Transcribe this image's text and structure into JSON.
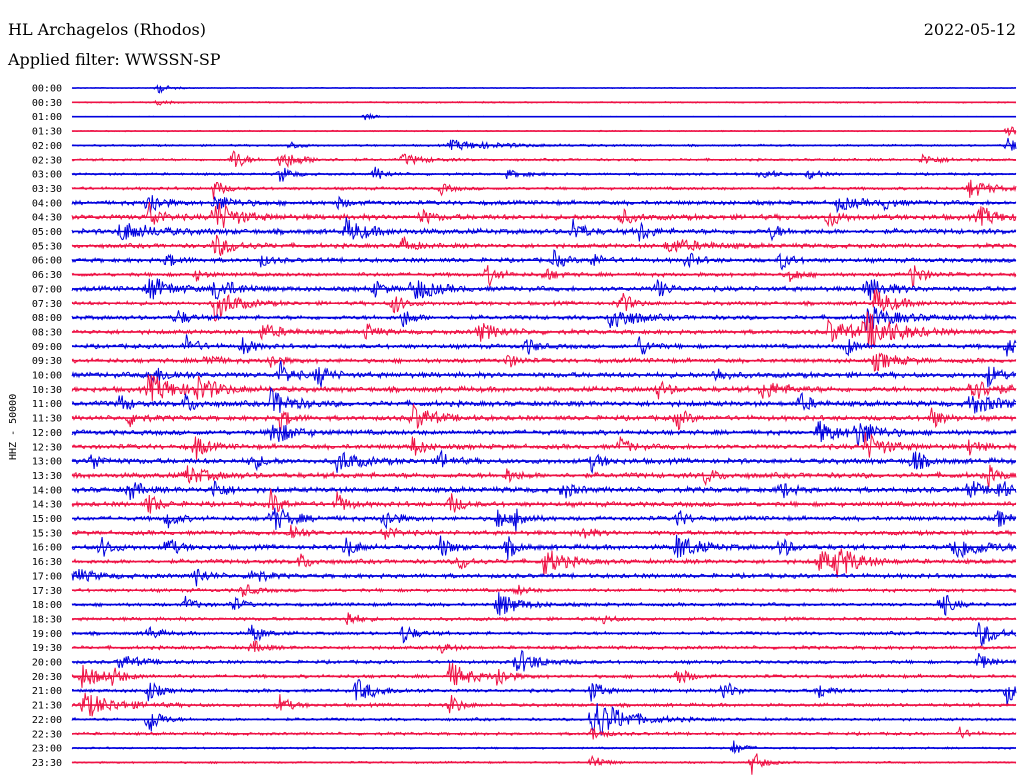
{
  "header": {
    "station": "HL Archagelos (Rhodos)",
    "filter": "Applied filter: WWSSN-SP",
    "date": "2022-05-12"
  },
  "chart_data": {
    "type": "line",
    "title": "HL Archagelos (Rhodos)",
    "subtitle": "Applied filter: WWSSN-SP",
    "ylabel": "HHZ - 50000",
    "xlabel": "",
    "colors": {
      "even": "#0000dd",
      "odd": "#ee1144"
    },
    "row_labels": [
      "00:00",
      "00:30",
      "01:00",
      "01:30",
      "02:00",
      "02:30",
      "03:00",
      "03:30",
      "04:00",
      "04:30",
      "05:00",
      "05:30",
      "06:00",
      "06:30",
      "07:00",
      "07:30",
      "08:00",
      "08:30",
      "09:00",
      "09:30",
      "10:00",
      "10:30",
      "11:00",
      "11:30",
      "12:00",
      "12:30",
      "13:00",
      "13:30",
      "14:00",
      "14:30",
      "15:00",
      "15:30",
      "16:00",
      "16:30",
      "17:00",
      "17:30",
      "18:00",
      "18:30",
      "19:00",
      "19:30",
      "20:00",
      "20:30",
      "21:00",
      "21:30",
      "22:00",
      "22:30",
      "23:00",
      "23:30"
    ],
    "noise_level": [
      0.4,
      0.6,
      0.3,
      0.5,
      0.8,
      1.0,
      1.0,
      1.2,
      1.8,
      2.2,
      2.2,
      1.8,
      1.8,
      1.6,
      2.0,
      1.6,
      1.8,
      1.8,
      1.8,
      1.8,
      2.2,
      2.2,
      2.2,
      2.0,
      2.0,
      2.0,
      2.2,
      2.2,
      2.2,
      2.0,
      1.8,
      1.8,
      2.0,
      1.8,
      1.8,
      1.4,
      1.4,
      1.4,
      1.4,
      1.4,
      1.4,
      1.4,
      1.4,
      1.4,
      1.2,
      1.2,
      0.8,
      0.8
    ],
    "events": [
      {
        "row": 0,
        "t": 0.09,
        "a": 6,
        "d": 0.01
      },
      {
        "row": 1,
        "t": 0.09,
        "a": 3,
        "d": 0.01
      },
      {
        "row": 2,
        "t": 0.31,
        "a": 4,
        "d": 0.01
      },
      {
        "row": 3,
        "t": 0.99,
        "a": 8,
        "d": 0.02
      },
      {
        "row": 4,
        "t": 0.4,
        "a": 5,
        "d": 0.05
      },
      {
        "row": 4,
        "t": 0.23,
        "a": 5,
        "d": 0.01
      },
      {
        "row": 4,
        "t": 0.99,
        "a": 10,
        "d": 0.01
      },
      {
        "row": 5,
        "t": 0.17,
        "a": 14,
        "d": 0.01
      },
      {
        "row": 5,
        "t": 0.22,
        "a": 10,
        "d": 0.02
      },
      {
        "row": 5,
        "t": 0.35,
        "a": 6,
        "d": 0.02
      },
      {
        "row": 5,
        "t": 0.9,
        "a": 5,
        "d": 0.02
      },
      {
        "row": 6,
        "t": 0.22,
        "a": 10,
        "d": 0.01
      },
      {
        "row": 6,
        "t": 0.32,
        "a": 8,
        "d": 0.01
      },
      {
        "row": 6,
        "t": 0.46,
        "a": 4,
        "d": 0.02
      },
      {
        "row": 6,
        "t": 0.73,
        "a": 8,
        "d": 0.01
      },
      {
        "row": 6,
        "t": 0.78,
        "a": 6,
        "d": 0.01
      },
      {
        "row": 7,
        "t": 0.15,
        "a": 10,
        "d": 0.01
      },
      {
        "row": 7,
        "t": 0.39,
        "a": 6,
        "d": 0.01
      },
      {
        "row": 7,
        "t": 0.95,
        "a": 10,
        "d": 0.02
      },
      {
        "row": 8,
        "t": 0.08,
        "a": 18,
        "d": 0.01
      },
      {
        "row": 8,
        "t": 0.15,
        "a": 8,
        "d": 0.02
      },
      {
        "row": 8,
        "t": 0.28,
        "a": 6,
        "d": 0.01
      },
      {
        "row": 8,
        "t": 0.81,
        "a": 8,
        "d": 0.02
      },
      {
        "row": 8,
        "t": 0.86,
        "a": 6,
        "d": 0.01
      },
      {
        "row": 9,
        "t": 0.08,
        "a": 18,
        "d": 0.01
      },
      {
        "row": 9,
        "t": 0.15,
        "a": 18,
        "d": 0.02
      },
      {
        "row": 9,
        "t": 0.37,
        "a": 8,
        "d": 0.01
      },
      {
        "row": 9,
        "t": 0.58,
        "a": 10,
        "d": 0.01
      },
      {
        "row": 9,
        "t": 0.8,
        "a": 12,
        "d": 0.01
      },
      {
        "row": 9,
        "t": 0.96,
        "a": 10,
        "d": 0.02
      },
      {
        "row": 10,
        "t": 0.05,
        "a": 10,
        "d": 0.03
      },
      {
        "row": 10,
        "t": 0.29,
        "a": 12,
        "d": 0.02
      },
      {
        "row": 10,
        "t": 0.53,
        "a": 14,
        "d": 0.01
      },
      {
        "row": 10,
        "t": 0.6,
        "a": 12,
        "d": 0.01
      },
      {
        "row": 10,
        "t": 0.74,
        "a": 8,
        "d": 0.01
      },
      {
        "row": 11,
        "t": 0.15,
        "a": 12,
        "d": 0.02
      },
      {
        "row": 11,
        "t": 0.35,
        "a": 10,
        "d": 0.01
      },
      {
        "row": 11,
        "t": 0.63,
        "a": 8,
        "d": 0.03
      },
      {
        "row": 12,
        "t": 0.1,
        "a": 8,
        "d": 0.01
      },
      {
        "row": 12,
        "t": 0.2,
        "a": 6,
        "d": 0.01
      },
      {
        "row": 12,
        "t": 0.51,
        "a": 10,
        "d": 0.01
      },
      {
        "row": 12,
        "t": 0.55,
        "a": 8,
        "d": 0.01
      },
      {
        "row": 12,
        "t": 0.65,
        "a": 10,
        "d": 0.01
      },
      {
        "row": 12,
        "t": 0.75,
        "a": 10,
        "d": 0.01
      },
      {
        "row": 13,
        "t": 0.13,
        "a": 6,
        "d": 0.01
      },
      {
        "row": 13,
        "t": 0.44,
        "a": 12,
        "d": 0.01
      },
      {
        "row": 13,
        "t": 0.5,
        "a": 8,
        "d": 0.01
      },
      {
        "row": 13,
        "t": 0.76,
        "a": 8,
        "d": 0.01
      },
      {
        "row": 13,
        "t": 0.89,
        "a": 14,
        "d": 0.01
      },
      {
        "row": 14,
        "t": 0.08,
        "a": 14,
        "d": 0.02
      },
      {
        "row": 14,
        "t": 0.15,
        "a": 12,
        "d": 0.02
      },
      {
        "row": 14,
        "t": 0.32,
        "a": 8,
        "d": 0.01
      },
      {
        "row": 14,
        "t": 0.36,
        "a": 14,
        "d": 0.02
      },
      {
        "row": 14,
        "t": 0.62,
        "a": 10,
        "d": 0.01
      },
      {
        "row": 14,
        "t": 0.84,
        "a": 12,
        "d": 0.02
      },
      {
        "row": 15,
        "t": 0.15,
        "a": 18,
        "d": 0.02
      },
      {
        "row": 15,
        "t": 0.34,
        "a": 12,
        "d": 0.01
      },
      {
        "row": 15,
        "t": 0.58,
        "a": 14,
        "d": 0.01
      },
      {
        "row": 15,
        "t": 0.85,
        "a": 14,
        "d": 0.02
      },
      {
        "row": 16,
        "t": 0.11,
        "a": 10,
        "d": 0.01
      },
      {
        "row": 16,
        "t": 0.35,
        "a": 10,
        "d": 0.01
      },
      {
        "row": 16,
        "t": 0.57,
        "a": 16,
        "d": 0.02
      },
      {
        "row": 16,
        "t": 0.84,
        "a": 12,
        "d": 0.03
      },
      {
        "row": 17,
        "t": 0.2,
        "a": 8,
        "d": 0.02
      },
      {
        "row": 17,
        "t": 0.31,
        "a": 10,
        "d": 0.01
      },
      {
        "row": 17,
        "t": 0.43,
        "a": 10,
        "d": 0.02
      },
      {
        "row": 17,
        "t": 0.8,
        "a": 12,
        "d": 0.03
      },
      {
        "row": 17,
        "t": 0.84,
        "a": 18,
        "d": 0.03
      },
      {
        "row": 18,
        "t": 0.12,
        "a": 12,
        "d": 0.01
      },
      {
        "row": 18,
        "t": 0.18,
        "a": 10,
        "d": 0.01
      },
      {
        "row": 18,
        "t": 0.48,
        "a": 10,
        "d": 0.01
      },
      {
        "row": 18,
        "t": 0.6,
        "a": 12,
        "d": 0.01
      },
      {
        "row": 18,
        "t": 0.82,
        "a": 10,
        "d": 0.01
      },
      {
        "row": 18,
        "t": 0.99,
        "a": 10,
        "d": 0.01
      },
      {
        "row": 19,
        "t": 0.14,
        "a": 10,
        "d": 0.01
      },
      {
        "row": 19,
        "t": 0.21,
        "a": 8,
        "d": 0.01
      },
      {
        "row": 19,
        "t": 0.46,
        "a": 8,
        "d": 0.01
      },
      {
        "row": 19,
        "t": 0.85,
        "a": 10,
        "d": 0.02
      },
      {
        "row": 20,
        "t": 0.08,
        "a": 10,
        "d": 0.02
      },
      {
        "row": 20,
        "t": 0.22,
        "a": 14,
        "d": 0.01
      },
      {
        "row": 20,
        "t": 0.26,
        "a": 14,
        "d": 0.01
      },
      {
        "row": 20,
        "t": 0.68,
        "a": 10,
        "d": 0.01
      },
      {
        "row": 20,
        "t": 0.97,
        "a": 12,
        "d": 0.01
      },
      {
        "row": 21,
        "t": 0.08,
        "a": 14,
        "d": 0.03
      },
      {
        "row": 21,
        "t": 0.13,
        "a": 12,
        "d": 0.02
      },
      {
        "row": 21,
        "t": 0.62,
        "a": 10,
        "d": 0.01
      },
      {
        "row": 21,
        "t": 0.73,
        "a": 10,
        "d": 0.02
      },
      {
        "row": 21,
        "t": 0.95,
        "a": 14,
        "d": 0.02
      },
      {
        "row": 22,
        "t": 0.05,
        "a": 10,
        "d": 0.01
      },
      {
        "row": 22,
        "t": 0.12,
        "a": 10,
        "d": 0.01
      },
      {
        "row": 22,
        "t": 0.21,
        "a": 14,
        "d": 0.02
      },
      {
        "row": 22,
        "t": 0.77,
        "a": 12,
        "d": 0.01
      },
      {
        "row": 22,
        "t": 0.95,
        "a": 10,
        "d": 0.03
      },
      {
        "row": 23,
        "t": 0.06,
        "a": 10,
        "d": 0.01
      },
      {
        "row": 23,
        "t": 0.22,
        "a": 12,
        "d": 0.01
      },
      {
        "row": 23,
        "t": 0.36,
        "a": 14,
        "d": 0.02
      },
      {
        "row": 23,
        "t": 0.64,
        "a": 12,
        "d": 0.01
      },
      {
        "row": 23,
        "t": 0.91,
        "a": 12,
        "d": 0.01
      },
      {
        "row": 24,
        "t": 0.21,
        "a": 14,
        "d": 0.02
      },
      {
        "row": 24,
        "t": 0.79,
        "a": 12,
        "d": 0.02
      },
      {
        "row": 24,
        "t": 0.83,
        "a": 14,
        "d": 0.02
      },
      {
        "row": 25,
        "t": 0.13,
        "a": 14,
        "d": 0.01
      },
      {
        "row": 25,
        "t": 0.36,
        "a": 12,
        "d": 0.01
      },
      {
        "row": 25,
        "t": 0.58,
        "a": 10,
        "d": 0.01
      },
      {
        "row": 25,
        "t": 0.84,
        "a": 14,
        "d": 0.02
      },
      {
        "row": 25,
        "t": 0.95,
        "a": 10,
        "d": 0.01
      },
      {
        "row": 26,
        "t": 0.02,
        "a": 10,
        "d": 0.01
      },
      {
        "row": 26,
        "t": 0.19,
        "a": 10,
        "d": 0.01
      },
      {
        "row": 26,
        "t": 0.28,
        "a": 12,
        "d": 0.02
      },
      {
        "row": 26,
        "t": 0.39,
        "a": 10,
        "d": 0.01
      },
      {
        "row": 26,
        "t": 0.55,
        "a": 10,
        "d": 0.01
      },
      {
        "row": 26,
        "t": 0.89,
        "a": 14,
        "d": 0.01
      },
      {
        "row": 27,
        "t": 0.12,
        "a": 10,
        "d": 0.02
      },
      {
        "row": 27,
        "t": 0.46,
        "a": 8,
        "d": 0.01
      },
      {
        "row": 27,
        "t": 0.67,
        "a": 10,
        "d": 0.01
      },
      {
        "row": 27,
        "t": 0.97,
        "a": 10,
        "d": 0.01
      },
      {
        "row": 28,
        "t": 0.06,
        "a": 12,
        "d": 0.01
      },
      {
        "row": 28,
        "t": 0.15,
        "a": 12,
        "d": 0.01
      },
      {
        "row": 28,
        "t": 0.52,
        "a": 10,
        "d": 0.01
      },
      {
        "row": 28,
        "t": 0.75,
        "a": 10,
        "d": 0.01
      },
      {
        "row": 28,
        "t": 0.95,
        "a": 12,
        "d": 0.01
      },
      {
        "row": 28,
        "t": 0.98,
        "a": 14,
        "d": 0.01
      },
      {
        "row": 29,
        "t": 0.08,
        "a": 12,
        "d": 0.01
      },
      {
        "row": 29,
        "t": 0.21,
        "a": 14,
        "d": 0.01
      },
      {
        "row": 29,
        "t": 0.28,
        "a": 12,
        "d": 0.01
      },
      {
        "row": 29,
        "t": 0.4,
        "a": 12,
        "d": 0.01
      },
      {
        "row": 30,
        "t": 0.1,
        "a": 10,
        "d": 0.01
      },
      {
        "row": 30,
        "t": 0.21,
        "a": 14,
        "d": 0.02
      },
      {
        "row": 30,
        "t": 0.33,
        "a": 14,
        "d": 0.01
      },
      {
        "row": 30,
        "t": 0.45,
        "a": 12,
        "d": 0.01
      },
      {
        "row": 30,
        "t": 0.47,
        "a": 12,
        "d": 0.01
      },
      {
        "row": 30,
        "t": 0.64,
        "a": 10,
        "d": 0.01
      },
      {
        "row": 30,
        "t": 0.98,
        "a": 10,
        "d": 0.01
      },
      {
        "row": 31,
        "t": 0.23,
        "a": 12,
        "d": 0.01
      },
      {
        "row": 31,
        "t": 0.33,
        "a": 10,
        "d": 0.01
      },
      {
        "row": 31,
        "t": 0.54,
        "a": 8,
        "d": 0.01
      },
      {
        "row": 32,
        "t": 0.03,
        "a": 12,
        "d": 0.01
      },
      {
        "row": 32,
        "t": 0.1,
        "a": 12,
        "d": 0.01
      },
      {
        "row": 32,
        "t": 0.29,
        "a": 12,
        "d": 0.01
      },
      {
        "row": 32,
        "t": 0.39,
        "a": 12,
        "d": 0.01
      },
      {
        "row": 32,
        "t": 0.46,
        "a": 12,
        "d": 0.01
      },
      {
        "row": 32,
        "t": 0.64,
        "a": 14,
        "d": 0.02
      },
      {
        "row": 32,
        "t": 0.75,
        "a": 12,
        "d": 0.01
      },
      {
        "row": 32,
        "t": 0.93,
        "a": 14,
        "d": 0.03
      },
      {
        "row": 33,
        "t": 0.24,
        "a": 10,
        "d": 0.01
      },
      {
        "row": 33,
        "t": 0.41,
        "a": 10,
        "d": 0.01
      },
      {
        "row": 33,
        "t": 0.5,
        "a": 14,
        "d": 0.02
      },
      {
        "row": 33,
        "t": 0.79,
        "a": 12,
        "d": 0.02
      },
      {
        "row": 33,
        "t": 0.81,
        "a": 14,
        "d": 0.02
      },
      {
        "row": 34,
        "t": 0.0,
        "a": 8,
        "d": 0.02
      },
      {
        "row": 34,
        "t": 0.13,
        "a": 12,
        "d": 0.01
      },
      {
        "row": 34,
        "t": 0.19,
        "a": 12,
        "d": 0.01
      },
      {
        "row": 35,
        "t": 0.18,
        "a": 8,
        "d": 0.01
      },
      {
        "row": 35,
        "t": 0.47,
        "a": 6,
        "d": 0.01
      },
      {
        "row": 36,
        "t": 0.12,
        "a": 8,
        "d": 0.01
      },
      {
        "row": 36,
        "t": 0.17,
        "a": 8,
        "d": 0.01
      },
      {
        "row": 36,
        "t": 0.45,
        "a": 14,
        "d": 0.02
      },
      {
        "row": 36,
        "t": 0.92,
        "a": 16,
        "d": 0.01
      },
      {
        "row": 37,
        "t": 0.29,
        "a": 10,
        "d": 0.01
      },
      {
        "row": 37,
        "t": 0.56,
        "a": 6,
        "d": 0.01
      },
      {
        "row": 38,
        "t": 0.08,
        "a": 8,
        "d": 0.01
      },
      {
        "row": 38,
        "t": 0.19,
        "a": 12,
        "d": 0.01
      },
      {
        "row": 38,
        "t": 0.35,
        "a": 12,
        "d": 0.01
      },
      {
        "row": 38,
        "t": 0.96,
        "a": 14,
        "d": 0.02
      },
      {
        "row": 39,
        "t": 0.19,
        "a": 8,
        "d": 0.01
      },
      {
        "row": 39,
        "t": 0.39,
        "a": 6,
        "d": 0.01
      },
      {
        "row": 40,
        "t": 0.05,
        "a": 8,
        "d": 0.02
      },
      {
        "row": 40,
        "t": 0.47,
        "a": 14,
        "d": 0.02
      },
      {
        "row": 40,
        "t": 0.96,
        "a": 10,
        "d": 0.01
      },
      {
        "row": 41,
        "t": 0.01,
        "a": 12,
        "d": 0.02
      },
      {
        "row": 41,
        "t": 0.04,
        "a": 10,
        "d": 0.01
      },
      {
        "row": 41,
        "t": 0.4,
        "a": 14,
        "d": 0.02
      },
      {
        "row": 41,
        "t": 0.45,
        "a": 12,
        "d": 0.01
      },
      {
        "row": 41,
        "t": 0.64,
        "a": 12,
        "d": 0.01
      },
      {
        "row": 42,
        "t": 0.08,
        "a": 12,
        "d": 0.01
      },
      {
        "row": 42,
        "t": 0.3,
        "a": 12,
        "d": 0.02
      },
      {
        "row": 42,
        "t": 0.55,
        "a": 12,
        "d": 0.01
      },
      {
        "row": 42,
        "t": 0.69,
        "a": 12,
        "d": 0.01
      },
      {
        "row": 42,
        "t": 0.79,
        "a": 10,
        "d": 0.01
      },
      {
        "row": 42,
        "t": 0.99,
        "a": 14,
        "d": 0.01
      },
      {
        "row": 43,
        "t": 0.01,
        "a": 14,
        "d": 0.03
      },
      {
        "row": 43,
        "t": 0.22,
        "a": 10,
        "d": 0.01
      },
      {
        "row": 43,
        "t": 0.4,
        "a": 12,
        "d": 0.01
      },
      {
        "row": 44,
        "t": 0.08,
        "a": 20,
        "d": 0.01
      },
      {
        "row": 44,
        "t": 0.55,
        "a": 24,
        "d": 0.03
      },
      {
        "row": 45,
        "t": 0.55,
        "a": 8,
        "d": 0.01
      },
      {
        "row": 45,
        "t": 0.94,
        "a": 6,
        "d": 0.01
      },
      {
        "row": 46,
        "t": 0.7,
        "a": 8,
        "d": 0.01
      },
      {
        "row": 47,
        "t": 0.55,
        "a": 10,
        "d": 0.01
      },
      {
        "row": 47,
        "t": 0.72,
        "a": 14,
        "d": 0.01
      }
    ]
  }
}
